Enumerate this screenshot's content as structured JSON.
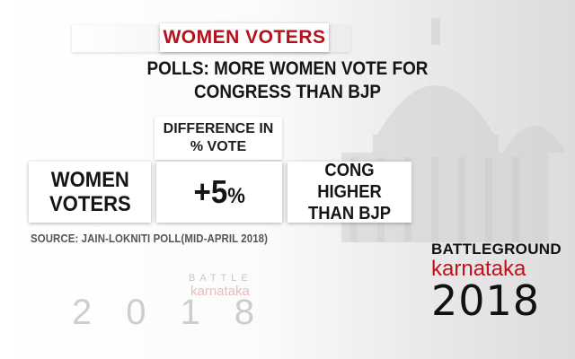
{
  "title": "WOMEN VOTERS",
  "headline": {
    "line1": "POLLS: MORE WOMEN VOTE FOR",
    "line2": "CONGRESS THAN BJP"
  },
  "difference_label": {
    "line1": "DIFFERENCE IN",
    "line2": "% VOTE"
  },
  "row": {
    "label_line1": "WOMEN",
    "label_line2": "VOTERS",
    "value_sign": "+5",
    "value_unit": "%",
    "note_line1": "CONG HIGHER",
    "note_line2": "THAN BJP"
  },
  "source": "SOURCE: JAIN-LOKNITI POLL(MID-APRIL 2018)",
  "logo": {
    "top": "BATTLEGROUND",
    "mid": "karnataka",
    "year": "2018"
  },
  "watermark": {
    "top": "BATTLE",
    "mid": "karnataka",
    "year": "2018"
  },
  "colors": {
    "title_red": "#b3121b",
    "logo_red": "#c0111a",
    "text_dark": "#151515"
  }
}
